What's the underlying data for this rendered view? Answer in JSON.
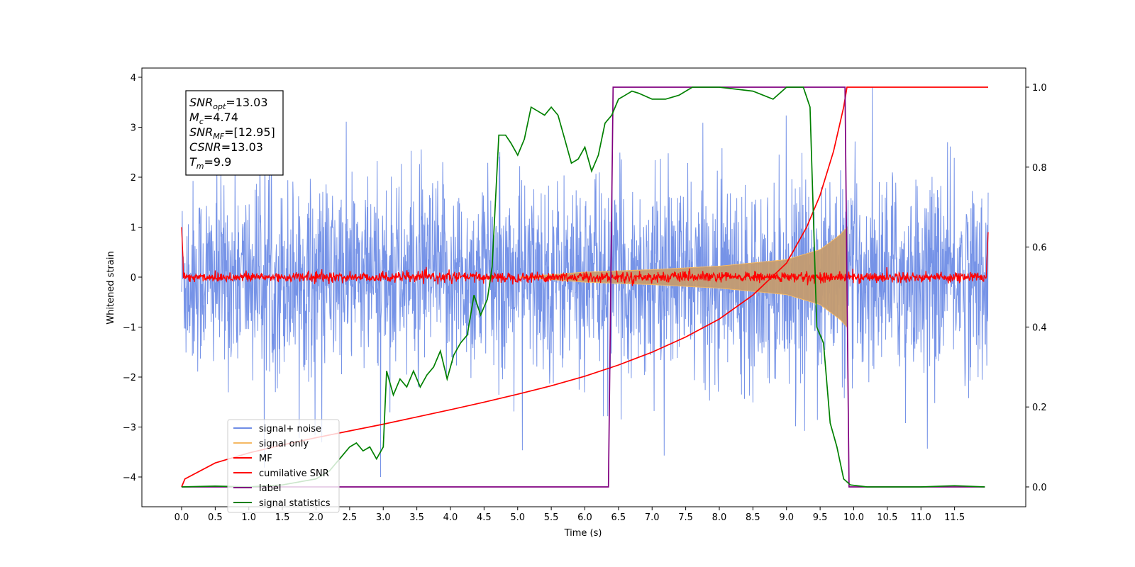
{
  "chart_data": {
    "type": "line",
    "xlabel": "Time (s)",
    "ylabel": "Whitened strain",
    "xlim": [
      -0.6,
      12.6
    ],
    "ylim": [
      -4.55,
      4.2
    ],
    "y2lim": [
      -0.045,
      1.045
    ],
    "x_ticks": [
      "0.0",
      "0.5",
      "1.0",
      "1.5",
      "2.0",
      "2.5",
      "3.0",
      "3.5",
      "4.0",
      "4.5",
      "5.0",
      "5.5",
      "6.0",
      "6.5",
      "7.0",
      "7.5",
      "8.0",
      "8.5",
      "9.0",
      "9.5",
      "10.0",
      "10.5",
      "11.0",
      "11.5"
    ],
    "y_ticks": [
      "−4",
      "−3",
      "−2",
      "−1",
      "0",
      "1",
      "2",
      "3",
      "4"
    ],
    "y2_ticks": [
      "0.0",
      "0.2",
      "0.4",
      "0.6",
      "0.8",
      "1.0"
    ],
    "annotation": {
      "snr_opt": {
        "base": "SNR",
        "sub": "opt",
        "value": "=13.03"
      },
      "mc": {
        "base": "M",
        "sub": "c",
        "value": "=4.74"
      },
      "snr_mf": {
        "base": "SNR",
        "sub": "MF",
        "value": "=[12.95]"
      },
      "csnr": {
        "base": "CSNR",
        "sub": "",
        "value": "=13.03"
      },
      "tm": {
        "base": "T",
        "sub": "m",
        "value": "=9.9"
      }
    },
    "series": [
      {
        "name": "signal+ noise",
        "color": "#6f8de6",
        "axis": "left",
        "envelope": {
          "t0": 0.0,
          "t1": 12.0,
          "typical_range": [
            -2.0,
            2.0
          ],
          "extremes": [
            -4.0,
            3.8
          ]
        }
      },
      {
        "name": "signal only",
        "color": "#f5b964",
        "axis": "left",
        "chirp": {
          "t_start": 5.0,
          "t_merge": 9.9,
          "amp_at": [
            [
              6.0,
              0.1
            ],
            [
              7.0,
              0.15
            ],
            [
              8.0,
              0.22
            ],
            [
              9.0,
              0.35
            ],
            [
              9.5,
              0.55
            ],
            [
              9.8,
              0.85
            ],
            [
              9.9,
              1.0
            ]
          ]
        }
      },
      {
        "name": "MF",
        "color": "#ff0000",
        "axis": "left",
        "noise_band": 0.15,
        "t0": 0.0,
        "t1": 12.0
      },
      {
        "name": "cumilative SNR",
        "color": "#ff0000",
        "axis": "right",
        "points": [
          [
            0.0,
            0.0
          ],
          [
            0.05,
            0.02
          ],
          [
            0.5,
            0.06
          ],
          [
            1.0,
            0.085
          ],
          [
            1.5,
            0.105
          ],
          [
            2.0,
            0.123
          ],
          [
            2.5,
            0.14
          ],
          [
            3.0,
            0.157
          ],
          [
            3.5,
            0.175
          ],
          [
            4.0,
            0.193
          ],
          [
            4.5,
            0.212
          ],
          [
            5.0,
            0.232
          ],
          [
            5.5,
            0.253
          ],
          [
            6.0,
            0.277
          ],
          [
            6.5,
            0.305
          ],
          [
            7.0,
            0.337
          ],
          [
            7.5,
            0.375
          ],
          [
            8.0,
            0.42
          ],
          [
            8.5,
            0.48
          ],
          [
            9.0,
            0.56
          ],
          [
            9.3,
            0.65
          ],
          [
            9.5,
            0.73
          ],
          [
            9.7,
            0.84
          ],
          [
            9.85,
            0.95
          ],
          [
            9.9,
            1.0
          ],
          [
            12.0,
            1.0
          ]
        ]
      },
      {
        "name": "label",
        "color": "#800080",
        "axis": "right",
        "points": [
          [
            0.0,
            0.0
          ],
          [
            6.35,
            0.0
          ],
          [
            6.42,
            1.0
          ],
          [
            9.87,
            1.0
          ],
          [
            9.93,
            0.0
          ],
          [
            11.95,
            0.0
          ]
        ]
      },
      {
        "name": "signal statistics",
        "color": "#008000",
        "axis": "right",
        "points": [
          [
            0.0,
            0.0
          ],
          [
            0.5,
            0.002
          ],
          [
            1.0,
            0.0
          ],
          [
            1.5,
            0.005
          ],
          [
            2.0,
            0.02
          ],
          [
            2.2,
            0.04
          ],
          [
            2.4,
            0.08
          ],
          [
            2.5,
            0.1
          ],
          [
            2.6,
            0.11
          ],
          [
            2.7,
            0.09
          ],
          [
            2.8,
            0.1
          ],
          [
            2.9,
            0.07
          ],
          [
            3.0,
            0.1
          ],
          [
            3.05,
            0.29
          ],
          [
            3.15,
            0.23
          ],
          [
            3.25,
            0.27
          ],
          [
            3.35,
            0.25
          ],
          [
            3.45,
            0.29
          ],
          [
            3.55,
            0.25
          ],
          [
            3.65,
            0.28
          ],
          [
            3.75,
            0.3
          ],
          [
            3.85,
            0.34
          ],
          [
            3.95,
            0.27
          ],
          [
            4.05,
            0.33
          ],
          [
            4.15,
            0.36
          ],
          [
            4.25,
            0.38
          ],
          [
            4.35,
            0.48
          ],
          [
            4.45,
            0.43
          ],
          [
            4.55,
            0.47
          ],
          [
            4.62,
            0.55
          ],
          [
            4.72,
            0.88
          ],
          [
            4.82,
            0.88
          ],
          [
            4.9,
            0.86
          ],
          [
            5.0,
            0.83
          ],
          [
            5.1,
            0.87
          ],
          [
            5.2,
            0.95
          ],
          [
            5.3,
            0.94
          ],
          [
            5.4,
            0.93
          ],
          [
            5.5,
            0.95
          ],
          [
            5.6,
            0.93
          ],
          [
            5.7,
            0.87
          ],
          [
            5.8,
            0.81
          ],
          [
            5.9,
            0.82
          ],
          [
            6.0,
            0.85
          ],
          [
            6.1,
            0.79
          ],
          [
            6.2,
            0.83
          ],
          [
            6.3,
            0.91
          ],
          [
            6.4,
            0.93
          ],
          [
            6.5,
            0.97
          ],
          [
            6.6,
            0.98
          ],
          [
            6.7,
            0.99
          ],
          [
            6.8,
            0.985
          ],
          [
            7.0,
            0.97
          ],
          [
            7.2,
            0.97
          ],
          [
            7.4,
            0.98
          ],
          [
            7.6,
            1.0
          ],
          [
            8.0,
            1.0
          ],
          [
            8.5,
            0.99
          ],
          [
            8.8,
            0.97
          ],
          [
            9.0,
            1.0
          ],
          [
            9.25,
            1.0
          ],
          [
            9.35,
            0.95
          ],
          [
            9.45,
            0.4
          ],
          [
            9.55,
            0.36
          ],
          [
            9.65,
            0.16
          ],
          [
            9.75,
            0.1
          ],
          [
            9.85,
            0.02
          ],
          [
            9.95,
            0.005
          ],
          [
            10.2,
            0.0
          ],
          [
            11.0,
            0.0
          ],
          [
            11.5,
            0.003
          ],
          [
            11.95,
            0.0
          ]
        ]
      }
    ],
    "legend": {
      "placement": "lower-left",
      "entries": [
        "signal+ noise",
        "signal only",
        "MF",
        "cumilative SNR",
        "label",
        "signal statistics"
      ]
    }
  }
}
